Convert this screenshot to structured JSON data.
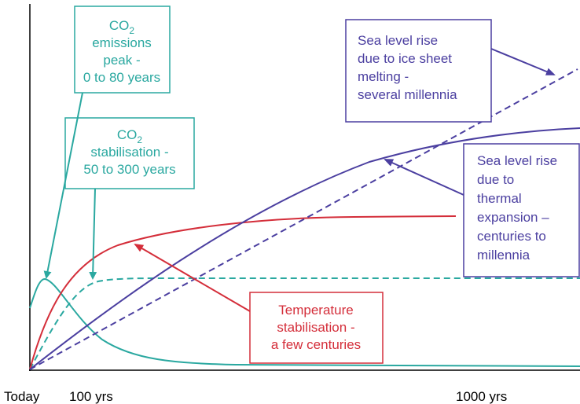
{
  "axis": {
    "x_labels": [
      "Today",
      "100 yrs",
      "1000 yrs"
    ]
  },
  "boxes": [
    {
      "id": "emissions-peak",
      "first": {
        "text": "CO",
        "sub": "2"
      },
      "lines": [
        "emissions",
        "peak -",
        "0 to 80 years"
      ]
    },
    {
      "id": "co2-stabilisation",
      "first": {
        "text": "CO",
        "sub": "2"
      },
      "lines": [
        "stabilisation -",
        "50 to 300 years"
      ]
    },
    {
      "id": "ice-sheet",
      "lines": [
        "Sea level rise",
        "due to ice sheet",
        "melting -",
        "several millennia"
      ]
    },
    {
      "id": "thermal",
      "lines": [
        "Sea level rise",
        "due to",
        "thermal",
        "expansion –",
        "centuries to",
        "millennia"
      ]
    },
    {
      "id": "temperature",
      "lines": [
        "Temperature",
        "stabilisation -",
        "a few centuries"
      ]
    }
  ]
}
